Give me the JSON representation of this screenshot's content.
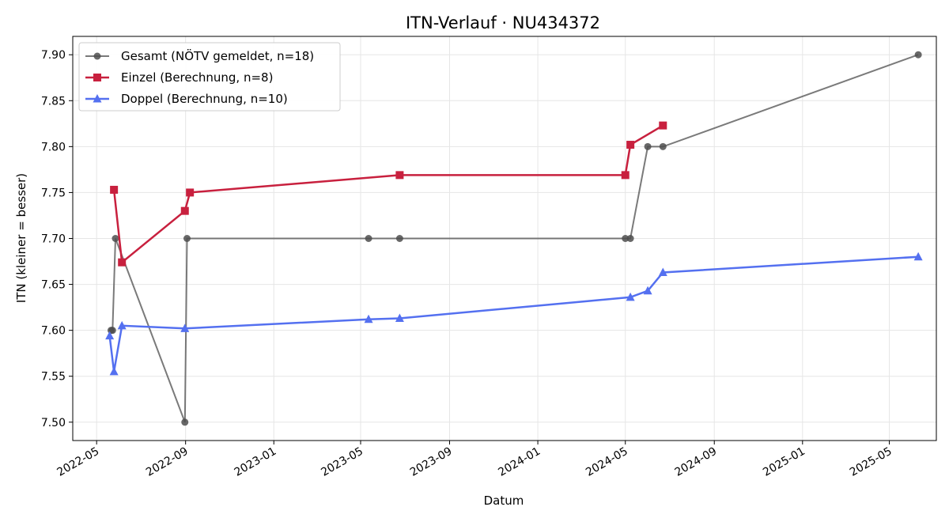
{
  "chart_data": {
    "type": "line",
    "title": "ITN-Verlauf · NU434372",
    "xlabel": "Datum",
    "ylabel": "ITN  (kleiner = besser)",
    "xlim": [
      "2022-03-29",
      "2025-07-05"
    ],
    "ylim": [
      7.48,
      7.92
    ],
    "x_ticks": [
      "2022-05",
      "2022-09",
      "2023-01",
      "2023-05",
      "2023-09",
      "2024-01",
      "2024-05",
      "2024-09",
      "2025-01",
      "2025-05"
    ],
    "y_ticks": [
      "7.50",
      "7.55",
      "7.60",
      "7.65",
      "7.70",
      "7.75",
      "7.80",
      "7.85",
      "7.90"
    ],
    "grid": true,
    "legend_position": "top-left",
    "series": [
      {
        "name": "Gesamt (NÖTV gemeldet, n=18)",
        "color": "#4d4d4d",
        "marker": "circle",
        "points": [
          [
            "2022-05-21",
            7.6
          ],
          [
            "2022-05-23",
            7.6
          ],
          [
            "2022-05-27",
            7.7
          ],
          [
            "2022-08-31",
            7.5
          ],
          [
            "2022-09-03",
            7.7
          ],
          [
            "2023-05-12",
            7.7
          ],
          [
            "2023-06-24",
            7.7
          ],
          [
            "2024-05-01",
            7.7
          ],
          [
            "2024-05-08",
            7.7
          ],
          [
            "2024-06-01",
            7.8
          ],
          [
            "2024-06-22",
            7.8
          ],
          [
            "2025-06-10",
            7.9
          ]
        ]
      },
      {
        "name": "Einzel (Berechnung, n=8)",
        "color": "#c8203e",
        "marker": "square",
        "points": [
          [
            "2022-05-25",
            7.753
          ],
          [
            "2022-06-05",
            7.674
          ],
          [
            "2022-08-31",
            7.73
          ],
          [
            "2022-09-07",
            7.75
          ],
          [
            "2023-06-24",
            7.769
          ],
          [
            "2024-05-01",
            7.769
          ],
          [
            "2024-05-08",
            7.802
          ],
          [
            "2024-06-22",
            7.823
          ]
        ]
      },
      {
        "name": "Doppel (Berechnung, n=10)",
        "color": "#5470f0",
        "marker": "triangle",
        "points": [
          [
            "2022-05-19",
            7.594
          ],
          [
            "2022-05-25",
            7.555
          ],
          [
            "2022-06-05",
            7.605
          ],
          [
            "2022-08-31",
            7.602
          ],
          [
            "2023-05-12",
            7.612
          ],
          [
            "2023-06-24",
            7.613
          ],
          [
            "2024-05-08",
            7.636
          ],
          [
            "2024-06-01",
            7.643
          ],
          [
            "2024-06-22",
            7.663
          ],
          [
            "2025-06-10",
            7.68
          ]
        ]
      }
    ]
  }
}
